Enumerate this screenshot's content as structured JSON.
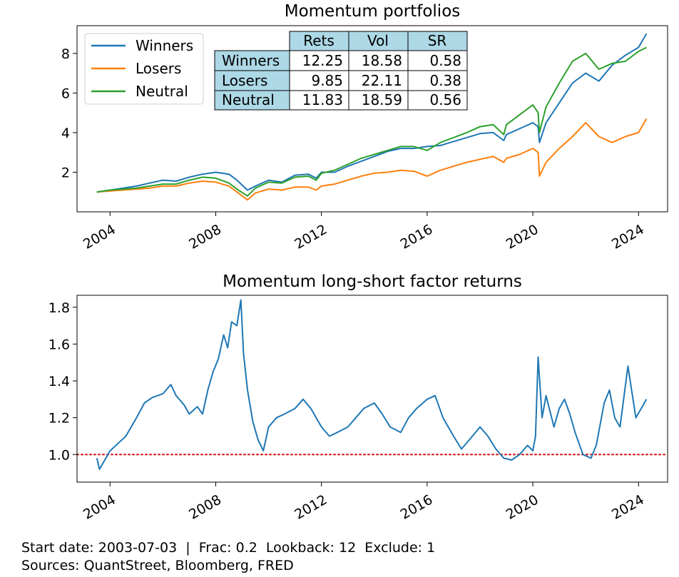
{
  "chart_data": [
    {
      "type": "line",
      "title": "Momentum portfolios",
      "xlabel": "",
      "ylabel": "",
      "xlim": [
        2002.75,
        2025.1
      ],
      "ylim": [
        0.0,
        9.4
      ],
      "x_ticks": [
        {
          "value": 2004,
          "label": "2004"
        },
        {
          "value": 2008,
          "label": "2008"
        },
        {
          "value": 2012,
          "label": "2012"
        },
        {
          "value": 2016,
          "label": "2016"
        },
        {
          "value": 2020,
          "label": "2020"
        },
        {
          "value": 2024,
          "label": "2024"
        }
      ],
      "y_ticks": [
        {
          "value": 2,
          "label": "2"
        },
        {
          "value": 4,
          "label": "4"
        },
        {
          "value": 6,
          "label": "6"
        },
        {
          "value": 8,
          "label": "8"
        }
      ],
      "legend_position": "top-left",
      "grid": false,
      "series": [
        {
          "name": "Winners",
          "color": "#1f77b4",
          "x": [
            2003.5,
            2004.0,
            2004.5,
            2005.0,
            2005.5,
            2006.0,
            2006.5,
            2007.0,
            2007.5,
            2008.0,
            2008.5,
            2008.8,
            2009.2,
            2009.5,
            2010.0,
            2010.5,
            2011.0,
            2011.5,
            2011.8,
            2012.0,
            2012.5,
            2013.0,
            2013.5,
            2014.0,
            2014.5,
            2015.0,
            2015.5,
            2016.0,
            2016.5,
            2017.0,
            2017.5,
            2018.0,
            2018.5,
            2018.9,
            2019.0,
            2019.5,
            2020.0,
            2020.2,
            2020.25,
            2020.5,
            2021.0,
            2021.5,
            2022.0,
            2022.5,
            2023.0,
            2023.5,
            2024.0,
            2024.3
          ],
          "y": [
            1.0,
            1.1,
            1.2,
            1.3,
            1.45,
            1.6,
            1.55,
            1.75,
            1.9,
            2.0,
            1.9,
            1.6,
            1.1,
            1.3,
            1.6,
            1.5,
            1.85,
            1.9,
            1.7,
            2.0,
            2.0,
            2.3,
            2.55,
            2.8,
            3.05,
            3.2,
            3.2,
            3.3,
            3.35,
            3.55,
            3.75,
            3.95,
            4.0,
            3.6,
            3.9,
            4.2,
            4.5,
            4.3,
            3.5,
            4.5,
            5.5,
            6.5,
            7.0,
            6.6,
            7.4,
            7.9,
            8.3,
            9.0
          ]
        },
        {
          "name": "Losers",
          "color": "#ff7f0e",
          "x": [
            2003.5,
            2004.0,
            2004.5,
            2005.0,
            2005.5,
            2006.0,
            2006.5,
            2007.0,
            2007.5,
            2008.0,
            2008.5,
            2008.8,
            2009.2,
            2009.5,
            2010.0,
            2010.5,
            2011.0,
            2011.5,
            2011.8,
            2012.0,
            2012.5,
            2013.0,
            2013.5,
            2014.0,
            2014.5,
            2015.0,
            2015.5,
            2016.0,
            2016.5,
            2017.0,
            2017.5,
            2018.0,
            2018.5,
            2018.9,
            2019.0,
            2019.5,
            2020.0,
            2020.2,
            2020.25,
            2020.5,
            2021.0,
            2021.5,
            2022.0,
            2022.5,
            2023.0,
            2023.5,
            2024.0,
            2024.3
          ],
          "y": [
            1.0,
            1.05,
            1.1,
            1.15,
            1.2,
            1.3,
            1.3,
            1.45,
            1.55,
            1.5,
            1.3,
            1.0,
            0.6,
            0.95,
            1.15,
            1.1,
            1.25,
            1.25,
            1.1,
            1.3,
            1.4,
            1.6,
            1.8,
            1.95,
            2.0,
            2.1,
            2.05,
            1.8,
            2.1,
            2.3,
            2.5,
            2.65,
            2.8,
            2.5,
            2.7,
            2.9,
            3.2,
            3.0,
            1.8,
            2.5,
            3.2,
            3.8,
            4.5,
            3.8,
            3.5,
            3.8,
            4.0,
            4.7
          ]
        },
        {
          "name": "Neutral",
          "color": "#2ca02c",
          "x": [
            2003.5,
            2004.0,
            2004.5,
            2005.0,
            2005.5,
            2006.0,
            2006.5,
            2007.0,
            2007.5,
            2008.0,
            2008.5,
            2008.8,
            2009.2,
            2009.5,
            2010.0,
            2010.5,
            2011.0,
            2011.5,
            2011.8,
            2012.0,
            2012.5,
            2013.0,
            2013.5,
            2014.0,
            2014.5,
            2015.0,
            2015.5,
            2016.0,
            2016.5,
            2017.0,
            2017.5,
            2018.0,
            2018.5,
            2018.9,
            2019.0,
            2019.5,
            2020.0,
            2020.2,
            2020.25,
            2020.5,
            2021.0,
            2021.5,
            2022.0,
            2022.5,
            2023.0,
            2023.5,
            2024.0,
            2024.3
          ],
          "y": [
            1.0,
            1.1,
            1.15,
            1.2,
            1.3,
            1.4,
            1.4,
            1.6,
            1.75,
            1.7,
            1.45,
            1.15,
            0.8,
            1.2,
            1.5,
            1.45,
            1.75,
            1.8,
            1.6,
            1.95,
            2.1,
            2.4,
            2.7,
            2.9,
            3.1,
            3.3,
            3.3,
            3.1,
            3.5,
            3.75,
            4.0,
            4.3,
            4.4,
            3.9,
            4.4,
            4.9,
            5.4,
            5.0,
            4.0,
            5.3,
            6.5,
            7.6,
            8.0,
            7.2,
            7.5,
            7.6,
            8.1,
            8.3
          ]
        }
      ],
      "table": {
        "columns": [
          "Rets",
          "Vol",
          "SR"
        ],
        "rows": [
          {
            "label": "Winners",
            "values": [
              "12.25",
              "18.58",
              "0.58"
            ]
          },
          {
            "label": "Losers",
            "values": [
              "9.85",
              "22.11",
              "0.38"
            ]
          },
          {
            "label": "Neutral",
            "values": [
              "11.83",
              "18.59",
              "0.56"
            ]
          }
        ],
        "header_color": "#add8e6"
      }
    },
    {
      "type": "line",
      "title": "Momentum long-short factor returns",
      "xlabel": "",
      "ylabel": "",
      "xlim": [
        2002.75,
        2025.1
      ],
      "ylim": [
        0.85,
        1.865
      ],
      "x_ticks": [
        {
          "value": 2004,
          "label": "2004"
        },
        {
          "value": 2008,
          "label": "2008"
        },
        {
          "value": 2012,
          "label": "2012"
        },
        {
          "value": 2016,
          "label": "2016"
        },
        {
          "value": 2020,
          "label": "2020"
        },
        {
          "value": 2024,
          "label": "2024"
        }
      ],
      "y_ticks": [
        {
          "value": 1.0,
          "label": "1.0"
        },
        {
          "value": 1.2,
          "label": "1.2"
        },
        {
          "value": 1.4,
          "label": "1.4"
        },
        {
          "value": 1.6,
          "label": "1.6"
        },
        {
          "value": 1.8,
          "label": "1.8"
        }
      ],
      "grid": false,
      "reference_line": {
        "y": 1.0,
        "color": "#d62728",
        "style": "dotted"
      },
      "series": [
        {
          "color": "#1f77b4",
          "x": [
            2003.5,
            2003.6,
            2003.8,
            2004.0,
            2004.3,
            2004.6,
            2005.0,
            2005.3,
            2005.6,
            2006.0,
            2006.3,
            2006.5,
            2006.8,
            2007.0,
            2007.3,
            2007.5,
            2007.7,
            2007.9,
            2008.1,
            2008.3,
            2008.45,
            2008.6,
            2008.8,
            2008.95,
            2009.05,
            2009.2,
            2009.4,
            2009.6,
            2009.8,
            2010.0,
            2010.3,
            2010.6,
            2011.0,
            2011.3,
            2011.6,
            2012.0,
            2012.3,
            2012.6,
            2013.0,
            2013.3,
            2013.6,
            2014.0,
            2014.3,
            2014.6,
            2015.0,
            2015.3,
            2015.6,
            2016.0,
            2016.3,
            2016.6,
            2017.0,
            2017.3,
            2017.6,
            2018.0,
            2018.3,
            2018.6,
            2018.9,
            2019.2,
            2019.5,
            2019.8,
            2020.0,
            2020.1,
            2020.2,
            2020.35,
            2020.5,
            2020.8,
            2021.0,
            2021.2,
            2021.4,
            2021.6,
            2021.9,
            2022.2,
            2022.4,
            2022.7,
            2022.9,
            2023.1,
            2023.3,
            2023.6,
            2023.9,
            2024.1,
            2024.3
          ],
          "y": [
            0.98,
            0.92,
            0.97,
            1.02,
            1.06,
            1.1,
            1.2,
            1.28,
            1.31,
            1.33,
            1.38,
            1.32,
            1.27,
            1.22,
            1.26,
            1.22,
            1.35,
            1.45,
            1.52,
            1.65,
            1.58,
            1.72,
            1.7,
            1.84,
            1.55,
            1.35,
            1.18,
            1.08,
            1.02,
            1.15,
            1.2,
            1.22,
            1.25,
            1.3,
            1.25,
            1.15,
            1.1,
            1.12,
            1.15,
            1.2,
            1.25,
            1.28,
            1.22,
            1.15,
            1.12,
            1.2,
            1.25,
            1.3,
            1.32,
            1.2,
            1.1,
            1.03,
            1.08,
            1.15,
            1.1,
            1.03,
            0.98,
            0.97,
            1.0,
            1.05,
            1.02,
            1.1,
            1.53,
            1.2,
            1.32,
            1.15,
            1.25,
            1.3,
            1.22,
            1.12,
            1.0,
            0.98,
            1.05,
            1.28,
            1.35,
            1.2,
            1.15,
            1.48,
            1.2,
            1.25,
            1.3
          ]
        }
      ]
    }
  ],
  "footer": {
    "line1": "Start date: 2003-07-03  |  Frac: 0.2  Lookback: 12  Exclude: 1",
    "line2": "Sources: QuantStreet, Bloomberg, FRED"
  }
}
